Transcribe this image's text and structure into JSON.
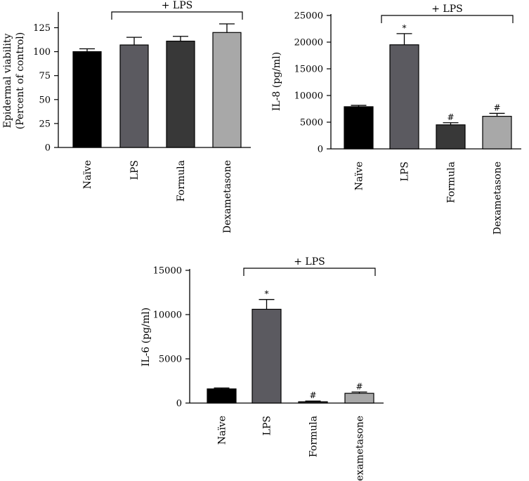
{
  "chart_data": [
    {
      "type": "bar",
      "categories": [
        "Naïve",
        "LPS",
        "Formula",
        "Dexametasone"
      ],
      "values": [
        100,
        107,
        111,
        120
      ],
      "errors": [
        3,
        8,
        5,
        9
      ],
      "significance": [
        "",
        "",
        "",
        ""
      ],
      "ylabel_lines": [
        "Epidermal viability",
        "(Percent of control)"
      ],
      "ylim": [
        0,
        140
      ],
      "yticks": [
        "0",
        "25",
        "50",
        "75",
        "100",
        "125"
      ],
      "bracket_label": "+ LPS",
      "colors": [
        "#000000",
        "#5b5a60",
        "#383838",
        "#a8a8a8"
      ]
    },
    {
      "type": "bar",
      "categories": [
        "Naïve",
        "LPS",
        "Formula",
        "Dexametasone"
      ],
      "values": [
        7900,
        19500,
        4500,
        6100
      ],
      "errors": [
        250,
        2100,
        400,
        550
      ],
      "significance": [
        "",
        "*",
        "#",
        "#"
      ],
      "ylabel_lines": [
        "IL-8 (pg/ml)"
      ],
      "ylim": [
        0,
        25000
      ],
      "yticks": [
        "0",
        "5000",
        "10000",
        "15000",
        "20000",
        "25000"
      ],
      "bracket_label": "+ LPS",
      "colors": [
        "#000000",
        "#5b5a60",
        "#383838",
        "#a8a8a8"
      ]
    },
    {
      "type": "bar",
      "categories": [
        "Naïve",
        "LPS",
        "Formula",
        "Dexametasone"
      ],
      "values": [
        1600,
        10600,
        150,
        1100
      ],
      "errors": [
        100,
        1100,
        80,
        150
      ],
      "significance": [
        "",
        "*",
        "#",
        "#"
      ],
      "ylabel_lines": [
        "IL-6 (pg/ml)"
      ],
      "ylim": [
        0,
        15000
      ],
      "yticks": [
        "0",
        "5000",
        "10000",
        "15000"
      ],
      "bracket_label": "+ LPS",
      "colors": [
        "#000000",
        "#5b5a60",
        "#383838",
        "#a8a8a8"
      ]
    }
  ]
}
